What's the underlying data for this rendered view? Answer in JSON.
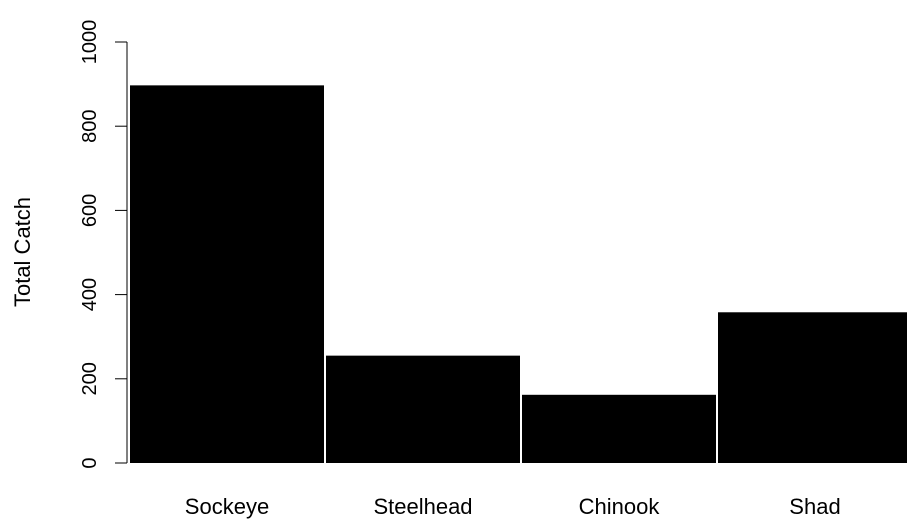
{
  "chart_data": {
    "type": "bar",
    "categories": [
      "Sockeye",
      "Steelhead",
      "Chinook",
      "Shad"
    ],
    "values": [
      897,
      255,
      162,
      358
    ],
    "title": "",
    "xlabel": "",
    "ylabel": "Total Catch",
    "ylim": [
      0,
      1000
    ],
    "yticks": [
      "0",
      "200",
      "400",
      "600",
      "800",
      "1000"
    ],
    "grid": false,
    "legend": "none",
    "colors": {
      "bar": "#000000",
      "axis": "#000000",
      "background": "#ffffff"
    }
  }
}
